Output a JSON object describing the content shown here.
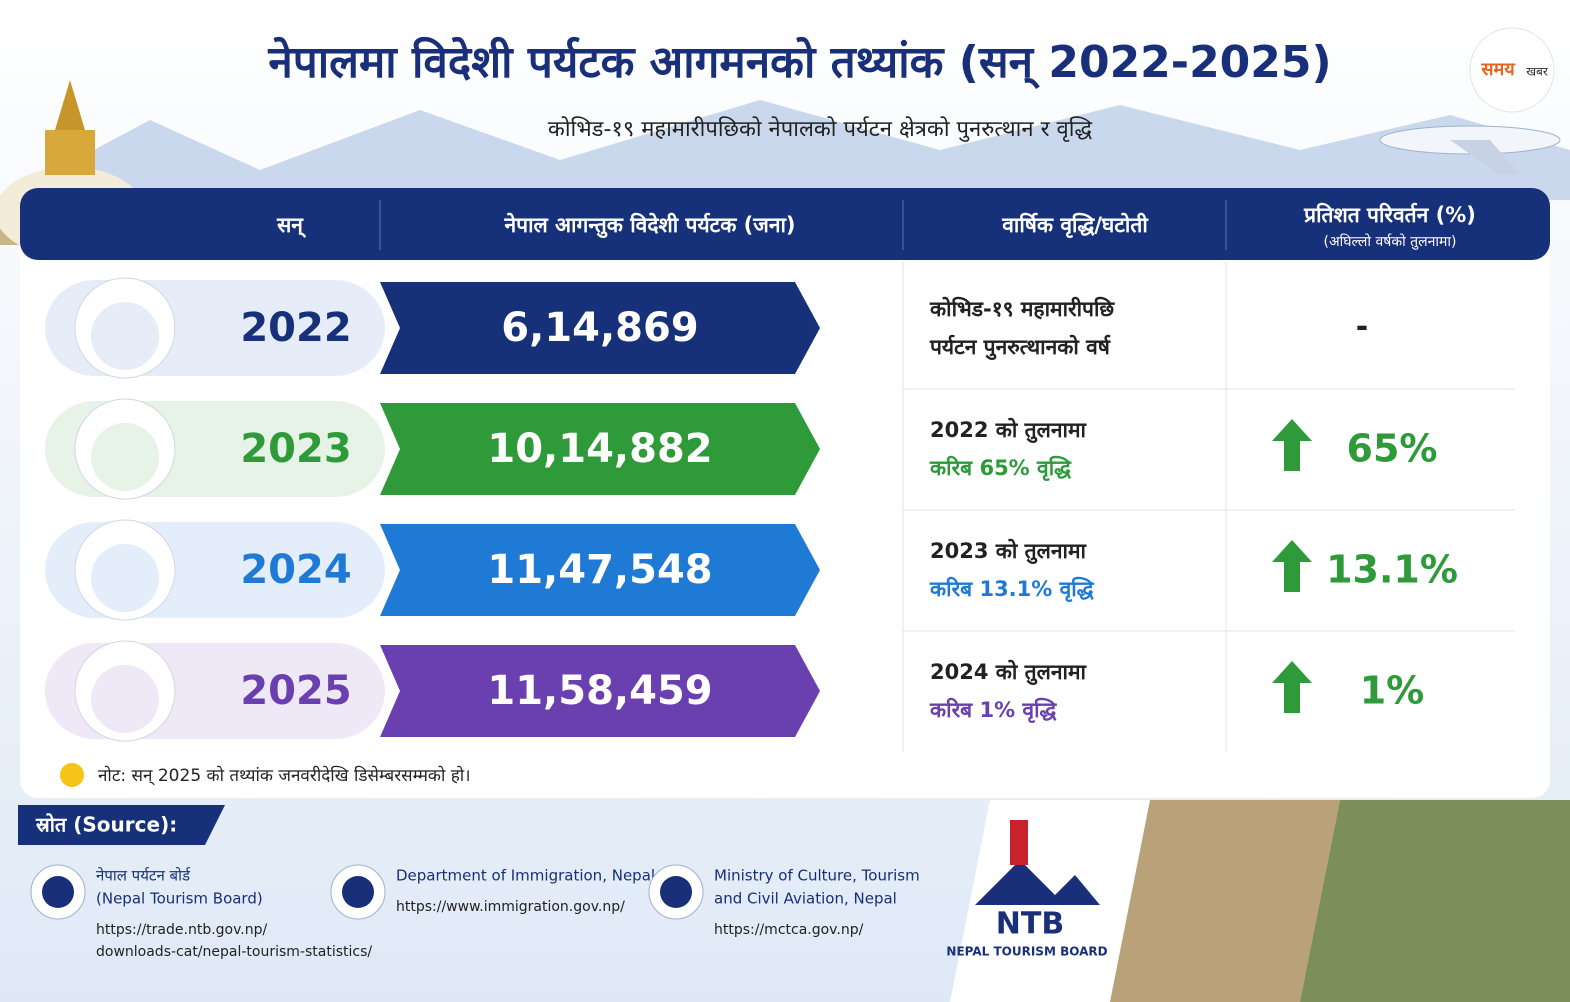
{
  "header": {
    "title": "नेपालमा विदेशी पर्यटक आगमनको तथ्यांक (सन् 2022-2025)",
    "subtitle": "कोभिड-१९ महामारीपछिको नेपालको पर्यटन क्षेत्रको पुनरुत्थान र वृद्धि",
    "logo_main": "समय",
    "logo_sub": "खबर"
  },
  "table": {
    "columns": [
      {
        "label": "सन्"
      },
      {
        "label": "नेपाल आगन्तुक विदेशी पर्यटक (जना)"
      },
      {
        "label": "वार्षिक वृद्धि/घटोती"
      },
      {
        "label": "प्रतिशत परिवर्तन (%)",
        "sublabel": "(अघिल्लो वर्षको तुलनामा)"
      }
    ],
    "rows": [
      {
        "year": "2022",
        "visitors": "6,14,869",
        "growth": [
          "कोभिड-१९ महामारीपछि",
          "पर्यटन पुनरुत्थानको वर्ष"
        ],
        "change": "-"
      },
      {
        "year": "2023",
        "visitors": "10,14,882",
        "growth": [
          "2022 को तुलनामा",
          "करिब 65% वृद्धि"
        ],
        "change": "65%"
      },
      {
        "year": "2024",
        "visitors": "11,47,548",
        "growth": [
          "2023 को तुलनामा",
          "करिब 13.1% वृद्धि"
        ],
        "change": "13.1%"
      },
      {
        "year": "2025",
        "visitors": "11,58,459",
        "growth": [
          "2024 को तुलनामा",
          "करिब 1% वृद्धि"
        ],
        "change": "1%"
      }
    ]
  },
  "note": "नोट: सन् 2025 को तथ्यांक जनवरीदेखि डिसेम्बरसम्मको हो।",
  "sources": {
    "title": "स्रोत (Source):",
    "items": [
      {
        "name": [
          "नेपाल पर्यटन बोर्ड",
          "(Nepal Tourism Board)"
        ],
        "url": [
          "https://trade.ntb.gov.np/",
          "downloads-cat/nepal-tourism-statistics/"
        ]
      },
      {
        "name": [
          "Department of Immigration, Nepal"
        ],
        "url": [
          "https://www.immigration.gov.np/"
        ]
      },
      {
        "name": [
          "Ministry of Culture, Tourism",
          "and Civil Aviation, Nepal"
        ],
        "url": [
          "https://mctca.gov.np/"
        ]
      }
    ]
  },
  "ntb": {
    "mark": "NTB",
    "name": "NEPAL TOURISM BOARD"
  }
}
